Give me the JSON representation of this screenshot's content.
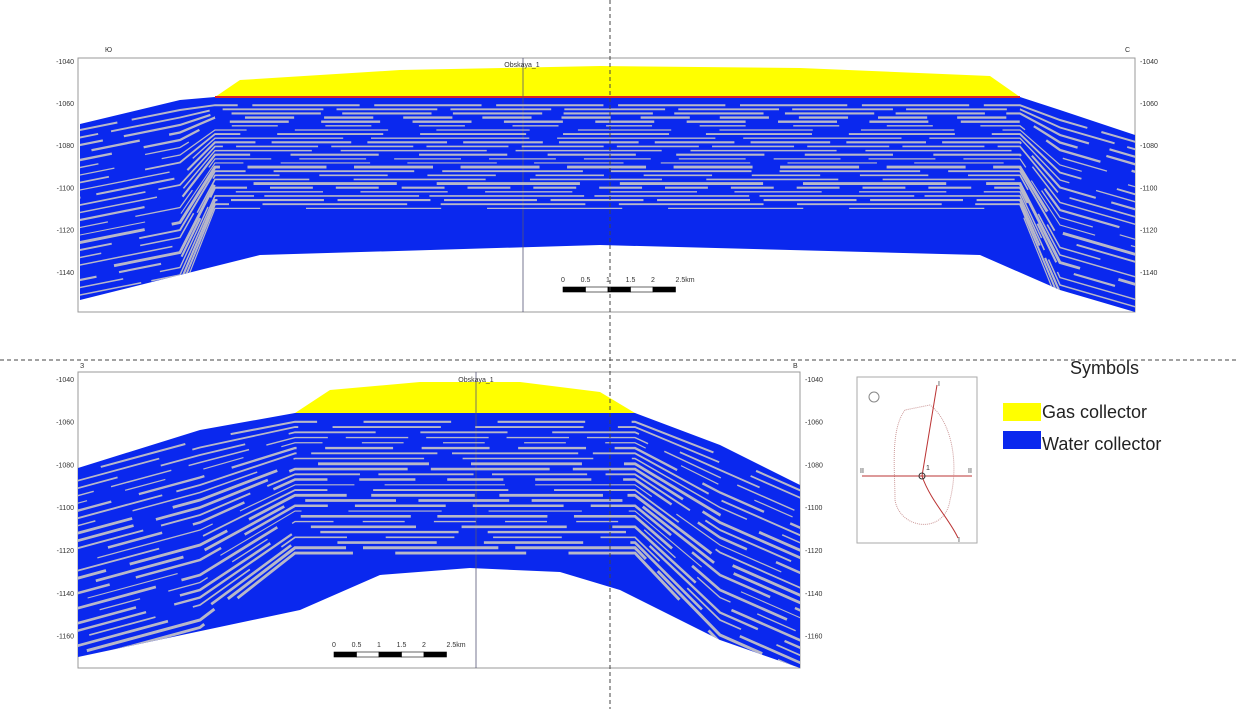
{
  "panels": [
    {
      "left_label": "Ю",
      "right_label": "С",
      "well": "Obskaya_1",
      "left_ticks": [
        -1040,
        -1060,
        -1080,
        -1100,
        -1120,
        -1140
      ],
      "right_ticks": [
        -1040,
        -1060,
        -1080,
        -1100,
        -1120,
        -1140
      ],
      "scale_labels": [
        "0",
        "0.5",
        "1",
        "1.5",
        "2",
        "2.5km"
      ]
    },
    {
      "left_label": "З",
      "right_label": "В",
      "well": "Obskaya_1",
      "left_ticks": [
        -1040,
        -1060,
        -1080,
        -1100,
        -1120,
        -1140,
        -1160
      ],
      "right_ticks": [
        -1040,
        -1060,
        -1080,
        -1100,
        -1120,
        -1140,
        -1160
      ],
      "scale_labels": [
        "0",
        "0.5",
        "1",
        "1.5",
        "2",
        "2.5km"
      ]
    }
  ],
  "legend": {
    "title": "Symbols",
    "items": [
      "Gas collector",
      "Water collector"
    ]
  },
  "map": {
    "labels": [
      "I",
      "I",
      "II",
      "II",
      "1"
    ]
  }
}
